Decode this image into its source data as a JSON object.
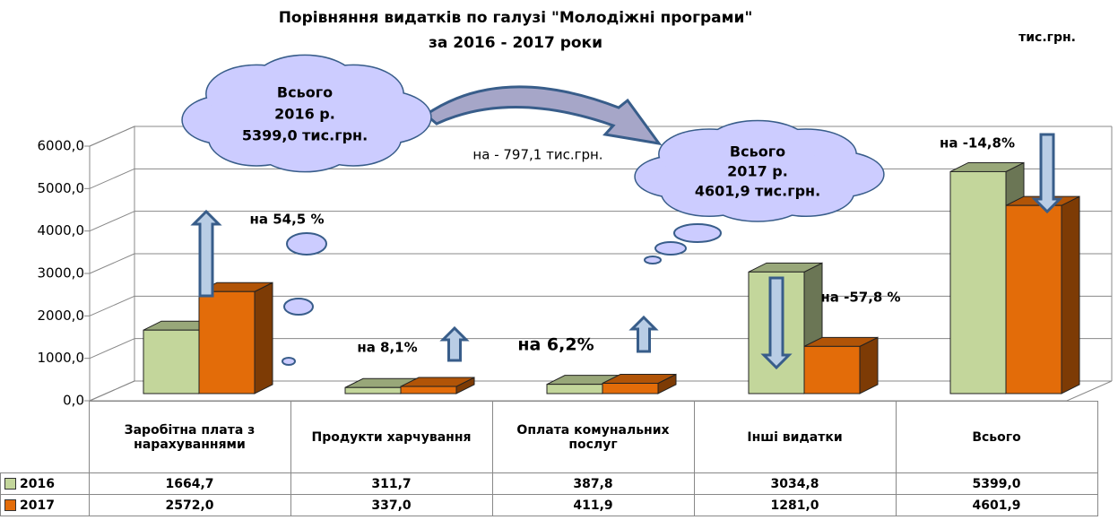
{
  "chart_data": {
    "type": "bar3d",
    "title": "Порівняння видатків по галузі \"Молодіжні програми\"",
    "subtitle": "за 2016 - 2017 роки",
    "unit_label": "тис.грн.",
    "categories": [
      "Заробітна плата з нарахуваннями",
      "Продукти харчування",
      "Оплата комунальних послуг",
      "Інші видатки",
      "Всього"
    ],
    "series": [
      {
        "name": "2016",
        "color": "#c3d69b",
        "values": [
          1664.7,
          311.7,
          387.8,
          3034.8,
          5399.0
        ],
        "value_labels": [
          "1664,7",
          "311,7",
          "387,8",
          "3034,8",
          "5399,0"
        ]
      },
      {
        "name": "2017",
        "color": "#e36c09",
        "values": [
          2572.0,
          337.0,
          411.9,
          1281.0,
          4601.9
        ],
        "value_labels": [
          "2572,0",
          "337,0",
          "411,9",
          "1281,0",
          "4601,9"
        ]
      }
    ],
    "ylim": [
      0,
      6000
    ],
    "yticks": [
      {
        "value": 0,
        "label": "0,0"
      },
      {
        "value": 1000,
        "label": "1000,0"
      },
      {
        "value": 2000,
        "label": "2000,0"
      },
      {
        "value": 3000,
        "label": "3000,0"
      },
      {
        "value": 4000,
        "label": "4000,0"
      },
      {
        "value": 5000,
        "label": "5000,0"
      },
      {
        "value": 6000,
        "label": "6000,0"
      }
    ],
    "grid": true,
    "annotations": [
      {
        "lines": [
          "Всього",
          "2016 р.",
          "5399,0 тис.грн."
        ]
      },
      {
        "lines": [
          "Всього",
          "2017 р.",
          "4601,9 тис.грн."
        ]
      },
      {
        "lines": [
          "на - 797,1 тис.грн."
        ]
      },
      {
        "lines": [
          "на 54,5 %"
        ]
      },
      {
        "lines": [
          "на 8,1%"
        ]
      },
      {
        "lines": [
          "на 6,2%"
        ]
      },
      {
        "lines": [
          "на -57,8 %"
        ]
      },
      {
        "lines": [
          "на -14,8%"
        ]
      }
    ]
  }
}
